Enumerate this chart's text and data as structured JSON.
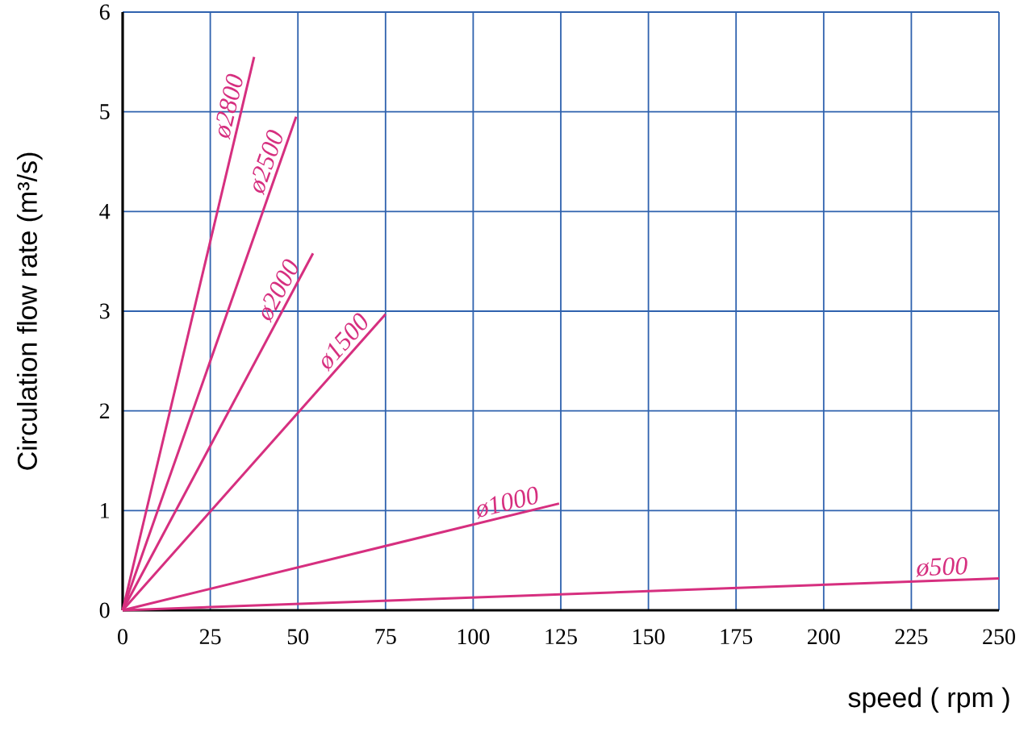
{
  "chart_data": {
    "type": "line",
    "xlabel": "speed ( rpm )",
    "ylabel": "Circulation flow rate (m³/s)",
    "xlim": [
      0,
      250
    ],
    "ylim": [
      0,
      6
    ],
    "xticks": [
      0,
      25,
      50,
      75,
      100,
      125,
      150,
      175,
      200,
      225,
      250
    ],
    "yticks": [
      0,
      1,
      2,
      3,
      4,
      5,
      6
    ],
    "grid": true,
    "marker": "none",
    "line_style": "solid",
    "series": [
      {
        "name": "ø2800",
        "color": "#d62f7f",
        "x": [
          0,
          37.5
        ],
        "values": [
          0,
          5.55
        ]
      },
      {
        "name": "ø2500",
        "color": "#d62f7f",
        "x": [
          0,
          49.5
        ],
        "values": [
          0,
          4.95
        ]
      },
      {
        "name": "ø2000",
        "color": "#d62f7f",
        "x": [
          0,
          54.3
        ],
        "values": [
          0,
          3.58
        ]
      },
      {
        "name": "ø1500",
        "color": "#d62f7f",
        "x": [
          0,
          75
        ],
        "values": [
          0,
          2.97
        ]
      },
      {
        "name": "ø1000",
        "color": "#d62f7f",
        "x": [
          0,
          124.5
        ],
        "values": [
          0,
          1.07
        ]
      },
      {
        "name": "ø500",
        "color": "#d62f7f",
        "x": [
          0,
          250
        ],
        "values": [
          0,
          0.32
        ]
      }
    ]
  }
}
